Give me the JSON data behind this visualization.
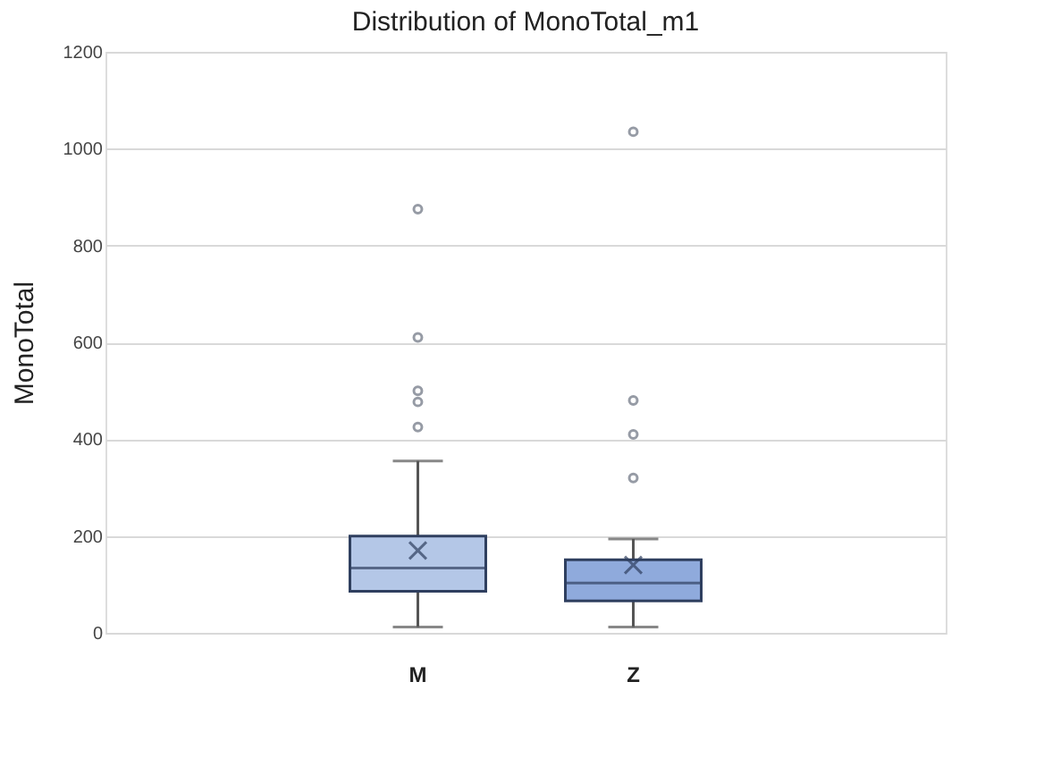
{
  "chart_data": {
    "type": "box",
    "title": "Distribution of MonoTotal_m1",
    "ylabel": "MonoTotal",
    "categories": [
      "M",
      "Z"
    ],
    "colors": [
      "#b4c7e7",
      "#8faadc"
    ],
    "boxes": [
      {
        "low": 12,
        "q1": 86,
        "median": 134,
        "q3": 200,
        "high": 355,
        "mean": 170,
        "outliers": [
          425,
          477,
          500,
          610,
          875
        ]
      },
      {
        "low": 12,
        "q1": 66,
        "median": 103,
        "q3": 151,
        "high": 194,
        "mean": 140,
        "outliers": [
          320,
          410,
          480,
          1035
        ]
      }
    ],
    "ylim": [
      0,
      1200
    ],
    "yticks": [
      0,
      200,
      400,
      600,
      800,
      1000,
      1200
    ],
    "grid": "y"
  }
}
